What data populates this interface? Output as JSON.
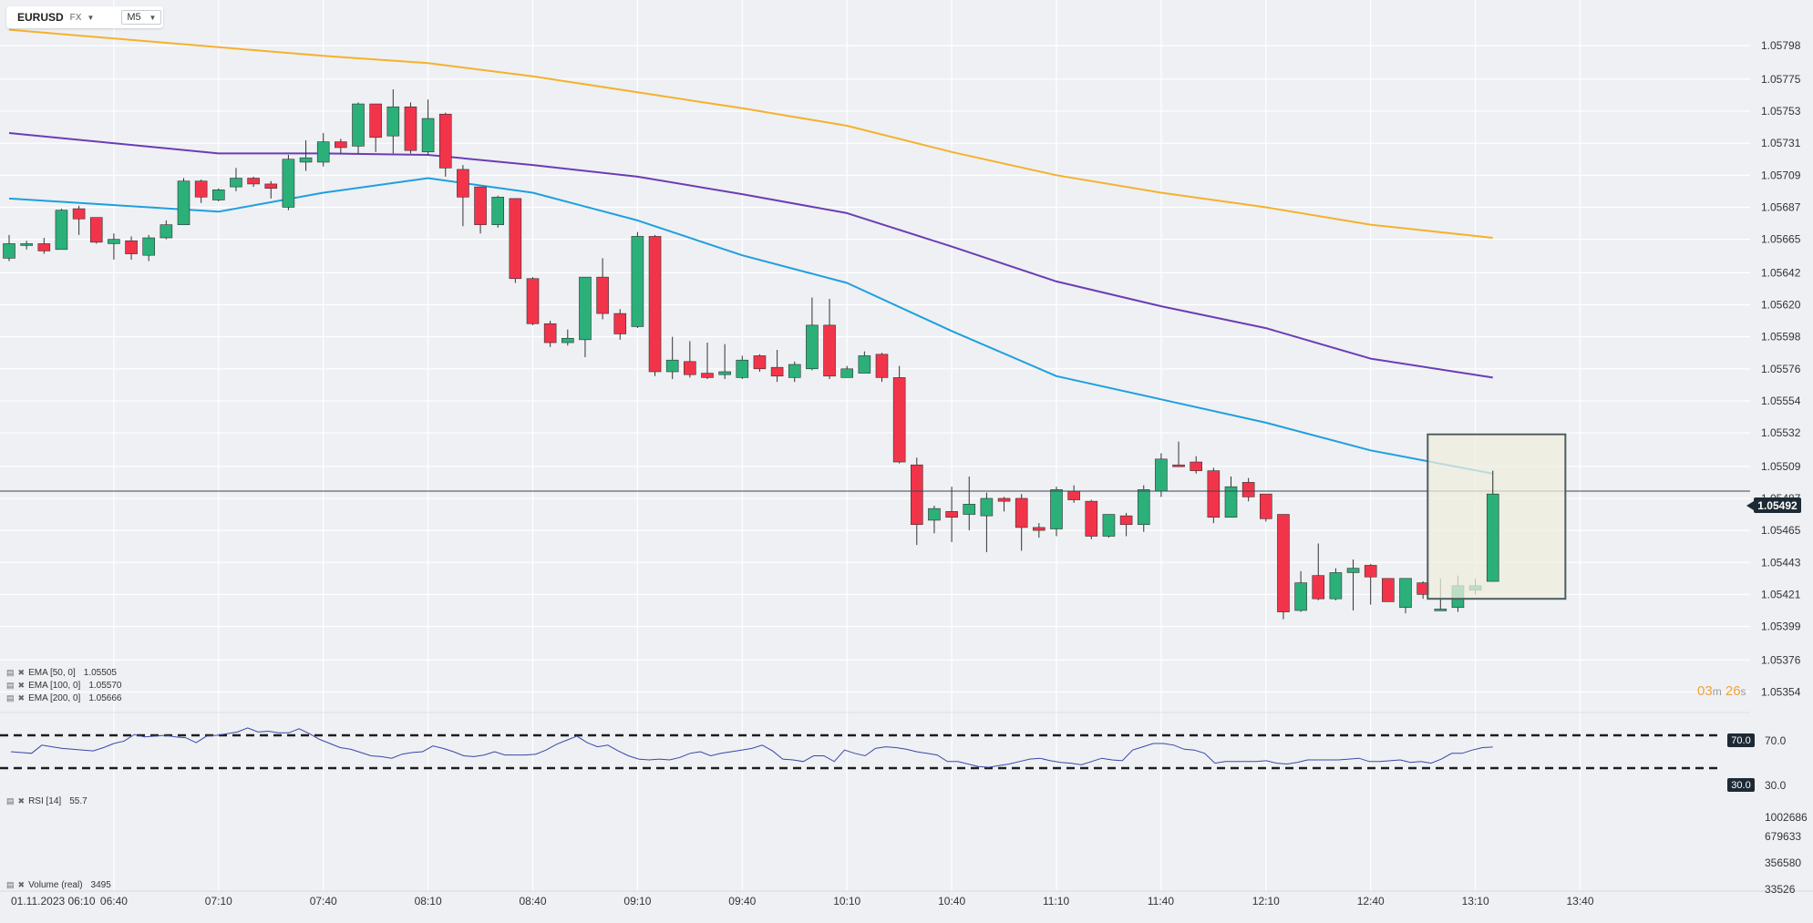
{
  "toolbar": {
    "symbol": "EURUSD",
    "market": "FX",
    "timeframe": "M5"
  },
  "indicators": {
    "ema50": {
      "label": "EMA [50, 0]",
      "value": "1.05505",
      "color": "#1e9fe0"
    },
    "ema100": {
      "label": "EMA [100, 0]",
      "value": "1.05570",
      "color": "#6b3db5"
    },
    "ema200": {
      "label": "EMA [200, 0]",
      "value": "1.05666",
      "color": "#f5b12c"
    },
    "rsi": {
      "label": "RSI [14]",
      "value": "55.7",
      "color": "#3a47a8"
    },
    "volume": {
      "label": "Volume  (real)",
      "value": "3495"
    }
  },
  "price_axis": {
    "ticks": [
      "1.05798",
      "1.05775",
      "1.05753",
      "1.05731",
      "1.05709",
      "1.05687",
      "1.05665",
      "1.05642",
      "1.05620",
      "1.05598",
      "1.05576",
      "1.05554",
      "1.05532",
      "1.05509",
      "1.05487",
      "1.05465",
      "1.05443",
      "1.05421",
      "1.05399",
      "1.05376",
      "1.05354"
    ],
    "current": "1.05492"
  },
  "rsi_axis": {
    "upper": "70.0",
    "lower": "30.0"
  },
  "volume_axis": {
    "ticks": [
      "1002686",
      "679633",
      "356580",
      "33526"
    ]
  },
  "time_axis": {
    "labels": [
      "01.11.2023  06:10",
      "06:40",
      "07:10",
      "07:40",
      "08:10",
      "08:40",
      "09:10",
      "09:40",
      "10:10",
      "10:40",
      "11:10",
      "11:40",
      "12:10",
      "12:40",
      "13:10",
      "13:40"
    ]
  },
  "timer": {
    "min": "03",
    "min_unit": "m",
    "sec": "26",
    "sec_unit": "s"
  },
  "colors": {
    "up": "#2bb07a",
    "down": "#f2344a",
    "highlight_fill": "#eeeedd",
    "highlight_stroke": "#4e5e5e"
  },
  "chart_data": {
    "type": "candlestick",
    "interval": "M5",
    "candles": [
      {
        "t": "06:10",
        "o": 1.05652,
        "h": 1.05668,
        "l": 1.0565,
        "c": 1.05662
      },
      {
        "t": "06:15",
        "o": 1.05662,
        "h": 1.05664,
        "l": 1.05658,
        "c": 1.05662
      },
      {
        "t": "06:20",
        "o": 1.05662,
        "h": 1.05666,
        "l": 1.05655,
        "c": 1.05657
      },
      {
        "t": "06:25",
        "o": 1.05658,
        "h": 1.05686,
        "l": 1.05658,
        "c": 1.05685
      },
      {
        "t": "06:30",
        "o": 1.05686,
        "h": 1.05688,
        "l": 1.05668,
        "c": 1.05679
      },
      {
        "t": "06:35",
        "o": 1.0568,
        "h": 1.0568,
        "l": 1.05662,
        "c": 1.05663
      },
      {
        "t": "06:40",
        "o": 1.05662,
        "h": 1.05669,
        "l": 1.05651,
        "c": 1.05665
      },
      {
        "t": "06:45",
        "o": 1.05664,
        "h": 1.05667,
        "l": 1.05651,
        "c": 1.05655
      },
      {
        "t": "06:50",
        "o": 1.05654,
        "h": 1.05668,
        "l": 1.0565,
        "c": 1.05666
      },
      {
        "t": "06:55",
        "o": 1.05666,
        "h": 1.05678,
        "l": 1.05665,
        "c": 1.05675
      },
      {
        "t": "07:00",
        "o": 1.05675,
        "h": 1.05707,
        "l": 1.05675,
        "c": 1.05705
      },
      {
        "t": "07:05",
        "o": 1.05705,
        "h": 1.05706,
        "l": 1.0569,
        "c": 1.05694
      },
      {
        "t": "07:10",
        "o": 1.05692,
        "h": 1.057,
        "l": 1.05691,
        "c": 1.05699
      },
      {
        "t": "07:15",
        "o": 1.05701,
        "h": 1.05714,
        "l": 1.05698,
        "c": 1.05707
      },
      {
        "t": "07:20",
        "o": 1.05707,
        "h": 1.05708,
        "l": 1.05701,
        "c": 1.05703
      },
      {
        "t": "07:25",
        "o": 1.05703,
        "h": 1.05705,
        "l": 1.05693,
        "c": 1.057
      },
      {
        "t": "07:30",
        "o": 1.05687,
        "h": 1.05723,
        "l": 1.05685,
        "c": 1.0572
      },
      {
        "t": "07:35",
        "o": 1.05718,
        "h": 1.05733,
        "l": 1.05712,
        "c": 1.05721
      },
      {
        "t": "07:40",
        "o": 1.05718,
        "h": 1.05738,
        "l": 1.05715,
        "c": 1.05732
      },
      {
        "t": "07:45",
        "o": 1.05732,
        "h": 1.05734,
        "l": 1.05724,
        "c": 1.05728
      },
      {
        "t": "07:50",
        "o": 1.05729,
        "h": 1.05759,
        "l": 1.05724,
        "c": 1.05758
      },
      {
        "t": "07:55",
        "o": 1.05758,
        "h": 1.05758,
        "l": 1.05725,
        "c": 1.05735
      },
      {
        "t": "08:00",
        "o": 1.05736,
        "h": 1.05768,
        "l": 1.05724,
        "c": 1.05756
      },
      {
        "t": "08:05",
        "o": 1.05756,
        "h": 1.05759,
        "l": 1.05724,
        "c": 1.05726
      },
      {
        "t": "08:10",
        "o": 1.05725,
        "h": 1.05761,
        "l": 1.05723,
        "c": 1.05748
      },
      {
        "t": "08:15",
        "o": 1.05751,
        "h": 1.05752,
        "l": 1.05708,
        "c": 1.05714
      },
      {
        "t": "08:20",
        "o": 1.05713,
        "h": 1.05716,
        "l": 1.05674,
        "c": 1.05694
      },
      {
        "t": "08:25",
        "o": 1.05701,
        "h": 1.05701,
        "l": 1.05669,
        "c": 1.05675
      },
      {
        "t": "08:30",
        "o": 1.05675,
        "h": 1.05695,
        "l": 1.05673,
        "c": 1.05694
      },
      {
        "t": "08:35",
        "o": 1.05693,
        "h": 1.05693,
        "l": 1.05635,
        "c": 1.05638
      },
      {
        "t": "08:40",
        "o": 1.05638,
        "h": 1.05639,
        "l": 1.05606,
        "c": 1.05607
      },
      {
        "t": "08:45",
        "o": 1.05607,
        "h": 1.05609,
        "l": 1.05591,
        "c": 1.05594
      },
      {
        "t": "08:50",
        "o": 1.05594,
        "h": 1.05603,
        "l": 1.05592,
        "c": 1.05597
      },
      {
        "t": "08:55",
        "o": 1.05596,
        "h": 1.05639,
        "l": 1.05584,
        "c": 1.05639
      },
      {
        "t": "09:00",
        "o": 1.05639,
        "h": 1.05652,
        "l": 1.0561,
        "c": 1.05614
      },
      {
        "t": "09:05",
        "o": 1.05614,
        "h": 1.05617,
        "l": 1.05596,
        "c": 1.056
      },
      {
        "t": "09:10",
        "o": 1.05605,
        "h": 1.0567,
        "l": 1.05604,
        "c": 1.05667
      },
      {
        "t": "09:15",
        "o": 1.05667,
        "h": 1.05668,
        "l": 1.05571,
        "c": 1.05574
      },
      {
        "t": "09:20",
        "o": 1.05574,
        "h": 1.05598,
        "l": 1.05569,
        "c": 1.05582
      },
      {
        "t": "09:25",
        "o": 1.05581,
        "h": 1.05595,
        "l": 1.0557,
        "c": 1.05572
      },
      {
        "t": "09:30",
        "o": 1.05573,
        "h": 1.05594,
        "l": 1.05569,
        "c": 1.0557
      },
      {
        "t": "09:35",
        "o": 1.05572,
        "h": 1.05593,
        "l": 1.05569,
        "c": 1.05574
      },
      {
        "t": "09:40",
        "o": 1.0557,
        "h": 1.05585,
        "l": 1.05569,
        "c": 1.05582
      },
      {
        "t": "09:45",
        "o": 1.05585,
        "h": 1.05586,
        "l": 1.05574,
        "c": 1.05576
      },
      {
        "t": "09:50",
        "o": 1.05577,
        "h": 1.05589,
        "l": 1.05567,
        "c": 1.05571
      },
      {
        "t": "09:55",
        "o": 1.0557,
        "h": 1.05581,
        "l": 1.05567,
        "c": 1.05579
      },
      {
        "t": "10:00",
        "o": 1.05576,
        "h": 1.05625,
        "l": 1.05575,
        "c": 1.05606
      },
      {
        "t": "10:05",
        "o": 1.05606,
        "h": 1.05624,
        "l": 1.05569,
        "c": 1.05571
      },
      {
        "t": "10:10",
        "o": 1.0557,
        "h": 1.05578,
        "l": 1.0557,
        "c": 1.05576
      },
      {
        "t": "10:15",
        "o": 1.05573,
        "h": 1.05588,
        "l": 1.05573,
        "c": 1.05585
      },
      {
        "t": "10:20",
        "o": 1.05586,
        "h": 1.05587,
        "l": 1.05567,
        "c": 1.0557
      },
      {
        "t": "10:25",
        "o": 1.0557,
        "h": 1.05578,
        "l": 1.05511,
        "c": 1.05512
      },
      {
        "t": "10:30",
        "o": 1.0551,
        "h": 1.05515,
        "l": 1.05455,
        "c": 1.05469
      },
      {
        "t": "10:35",
        "o": 1.05472,
        "h": 1.05482,
        "l": 1.05463,
        "c": 1.0548
      },
      {
        "t": "10:40",
        "o": 1.05478,
        "h": 1.05495,
        "l": 1.05457,
        "c": 1.05474
      },
      {
        "t": "10:45",
        "o": 1.05476,
        "h": 1.05502,
        "l": 1.05465,
        "c": 1.05483
      },
      {
        "t": "10:50",
        "o": 1.05475,
        "h": 1.05491,
        "l": 1.0545,
        "c": 1.05487
      },
      {
        "t": "10:55",
        "o": 1.05487,
        "h": 1.05488,
        "l": 1.05478,
        "c": 1.05485
      },
      {
        "t": "11:00",
        "o": 1.05487,
        "h": 1.0549,
        "l": 1.05451,
        "c": 1.05467
      },
      {
        "t": "11:05",
        "o": 1.05467,
        "h": 1.0547,
        "l": 1.0546,
        "c": 1.05465
      },
      {
        "t": "11:10",
        "o": 1.05466,
        "h": 1.05495,
        "l": 1.05461,
        "c": 1.05493
      },
      {
        "t": "11:15",
        "o": 1.05492,
        "h": 1.05496,
        "l": 1.05484,
        "c": 1.05486
      },
      {
        "t": "11:20",
        "o": 1.05485,
        "h": 1.05486,
        "l": 1.05459,
        "c": 1.05461
      },
      {
        "t": "11:25",
        "o": 1.05461,
        "h": 1.05476,
        "l": 1.0546,
        "c": 1.05476
      },
      {
        "t": "11:30",
        "o": 1.05475,
        "h": 1.05477,
        "l": 1.05461,
        "c": 1.05469
      },
      {
        "t": "11:35",
        "o": 1.05469,
        "h": 1.05496,
        "l": 1.05464,
        "c": 1.05493
      },
      {
        "t": "11:40",
        "o": 1.05492,
        "h": 1.05518,
        "l": 1.05488,
        "c": 1.05514
      },
      {
        "t": "11:45",
        "o": 1.0551,
        "h": 1.05526,
        "l": 1.05509,
        "c": 1.05509
      },
      {
        "t": "11:50",
        "o": 1.05512,
        "h": 1.05516,
        "l": 1.05504,
        "c": 1.05506
      },
      {
        "t": "11:55",
        "o": 1.05506,
        "h": 1.05508,
        "l": 1.0547,
        "c": 1.05474
      },
      {
        "t": "12:00",
        "o": 1.05474,
        "h": 1.05502,
        "l": 1.05474,
        "c": 1.05495
      },
      {
        "t": "12:05",
        "o": 1.05498,
        "h": 1.05501,
        "l": 1.05485,
        "c": 1.05488
      },
      {
        "t": "12:10",
        "o": 1.0549,
        "h": 1.0549,
        "l": 1.05471,
        "c": 1.05473
      },
      {
        "t": "12:15",
        "o": 1.05476,
        "h": 1.05476,
        "l": 1.05404,
        "c": 1.05409
      },
      {
        "t": "12:20",
        "o": 1.0541,
        "h": 1.05437,
        "l": 1.05409,
        "c": 1.05429
      },
      {
        "t": "12:25",
        "o": 1.05434,
        "h": 1.05456,
        "l": 1.05417,
        "c": 1.05418
      },
      {
        "t": "12:30",
        "o": 1.05418,
        "h": 1.05439,
        "l": 1.05417,
        "c": 1.05436
      },
      {
        "t": "12:35",
        "o": 1.05436,
        "h": 1.05445,
        "l": 1.0541,
        "c": 1.05439
      },
      {
        "t": "12:40",
        "o": 1.05441,
        "h": 1.05442,
        "l": 1.05414,
        "c": 1.05433
      },
      {
        "t": "12:45",
        "o": 1.05432,
        "h": 1.05432,
        "l": 1.05416,
        "c": 1.05416
      },
      {
        "t": "12:50",
        "o": 1.05412,
        "h": 1.05432,
        "l": 1.05408,
        "c": 1.05432
      },
      {
        "t": "12:55",
        "o": 1.05429,
        "h": 1.0543,
        "l": 1.05418,
        "c": 1.05421
      },
      {
        "t": "13:00",
        "o": 1.0541,
        "h": 1.05432,
        "l": 1.0541,
        "c": 1.05411
      },
      {
        "t": "13:05",
        "o": 1.05412,
        "h": 1.05434,
        "l": 1.05409,
        "c": 1.05427
      },
      {
        "t": "13:10",
        "o": 1.05424,
        "h": 1.05432,
        "l": 1.05421,
        "c": 1.05427
      },
      {
        "t": "13:15",
        "o": 1.0543,
        "h": 1.05506,
        "l": 1.0543,
        "c": 1.0549
      }
    ],
    "ema50": [
      {
        "t": "06:10",
        "v": 1.05693
      },
      {
        "t": "07:10",
        "v": 1.05684
      },
      {
        "t": "07:40",
        "v": 1.05697
      },
      {
        "t": "08:10",
        "v": 1.05707
      },
      {
        "t": "08:40",
        "v": 1.05697
      },
      {
        "t": "09:10",
        "v": 1.05678
      },
      {
        "t": "09:40",
        "v": 1.05654
      },
      {
        "t": "10:10",
        "v": 1.05635
      },
      {
        "t": "10:40",
        "v": 1.05602
      },
      {
        "t": "11:10",
        "v": 1.05571
      },
      {
        "t": "11:40",
        "v": 1.05555
      },
      {
        "t": "12:10",
        "v": 1.05539
      },
      {
        "t": "12:40",
        "v": 1.0552
      },
      {
        "t": "13:15",
        "v": 1.05504
      }
    ],
    "ema100": [
      {
        "t": "06:10",
        "v": 1.05738
      },
      {
        "t": "07:10",
        "v": 1.05724
      },
      {
        "t": "07:40",
        "v": 1.05724
      },
      {
        "t": "08:10",
        "v": 1.05723
      },
      {
        "t": "08:40",
        "v": 1.05716
      },
      {
        "t": "09:10",
        "v": 1.05708
      },
      {
        "t": "09:40",
        "v": 1.05696
      },
      {
        "t": "10:10",
        "v": 1.05683
      },
      {
        "t": "10:40",
        "v": 1.0566
      },
      {
        "t": "11:10",
        "v": 1.05636
      },
      {
        "t": "11:40",
        "v": 1.05619
      },
      {
        "t": "12:10",
        "v": 1.05604
      },
      {
        "t": "12:40",
        "v": 1.05583
      },
      {
        "t": "13:15",
        "v": 1.0557
      }
    ],
    "ema200": [
      {
        "t": "06:10",
        "v": 1.05809
      },
      {
        "t": "07:10",
        "v": 1.05797
      },
      {
        "t": "07:40",
        "v": 1.05791
      },
      {
        "t": "08:10",
        "v": 1.05786
      },
      {
        "t": "08:40",
        "v": 1.05777
      },
      {
        "t": "09:10",
        "v": 1.05766
      },
      {
        "t": "09:40",
        "v": 1.05755
      },
      {
        "t": "10:10",
        "v": 1.05743
      },
      {
        "t": "10:40",
        "v": 1.05725
      },
      {
        "t": "11:10",
        "v": 1.05709
      },
      {
        "t": "11:40",
        "v": 1.05697
      },
      {
        "t": "12:10",
        "v": 1.05687
      },
      {
        "t": "12:40",
        "v": 1.05675
      },
      {
        "t": "13:15",
        "v": 1.05666
      }
    ],
    "rsi": [
      50,
      49,
      48,
      58,
      56,
      54,
      53,
      52,
      51,
      55,
      60,
      63,
      71,
      68,
      69,
      70,
      68,
      67,
      61,
      69,
      70,
      72,
      74,
      79,
      74,
      75,
      73,
      73,
      78,
      72,
      65,
      60,
      55,
      53,
      49,
      45,
      44,
      42,
      47,
      49,
      50,
      57,
      54,
      50,
      45,
      44,
      46,
      50,
      46,
      46,
      46,
      47,
      52,
      59,
      64,
      69,
      61,
      56,
      58,
      51,
      45,
      41,
      40,
      41,
      40,
      43,
      48,
      50,
      45,
      48,
      50,
      52,
      54,
      58,
      51,
      41,
      40,
      38,
      45,
      45,
      38,
      52,
      48,
      45,
      54,
      56,
      55,
      53,
      50,
      48,
      46,
      38,
      38,
      35,
      32,
      31,
      33,
      35,
      38,
      41,
      42,
      39,
      37,
      36,
      34,
      38,
      42,
      40,
      39,
      52,
      56,
      60,
      60,
      58,
      53,
      52,
      48,
      36,
      38,
      38,
      38,
      38,
      39,
      36,
      35,
      37,
      40,
      40,
      40,
      40,
      41,
      42,
      38,
      38,
      39,
      40,
      37,
      38,
      36,
      41,
      48,
      48,
      52,
      55,
      55.7
    ],
    "price_range": [
      1.05343,
      1.05815
    ],
    "rsi_levels": [
      70,
      30
    ],
    "highlight": {
      "t_from": "13:00",
      "t_to": "13:35",
      "p_from": 1.05531,
      "p_to": 1.05418
    }
  }
}
